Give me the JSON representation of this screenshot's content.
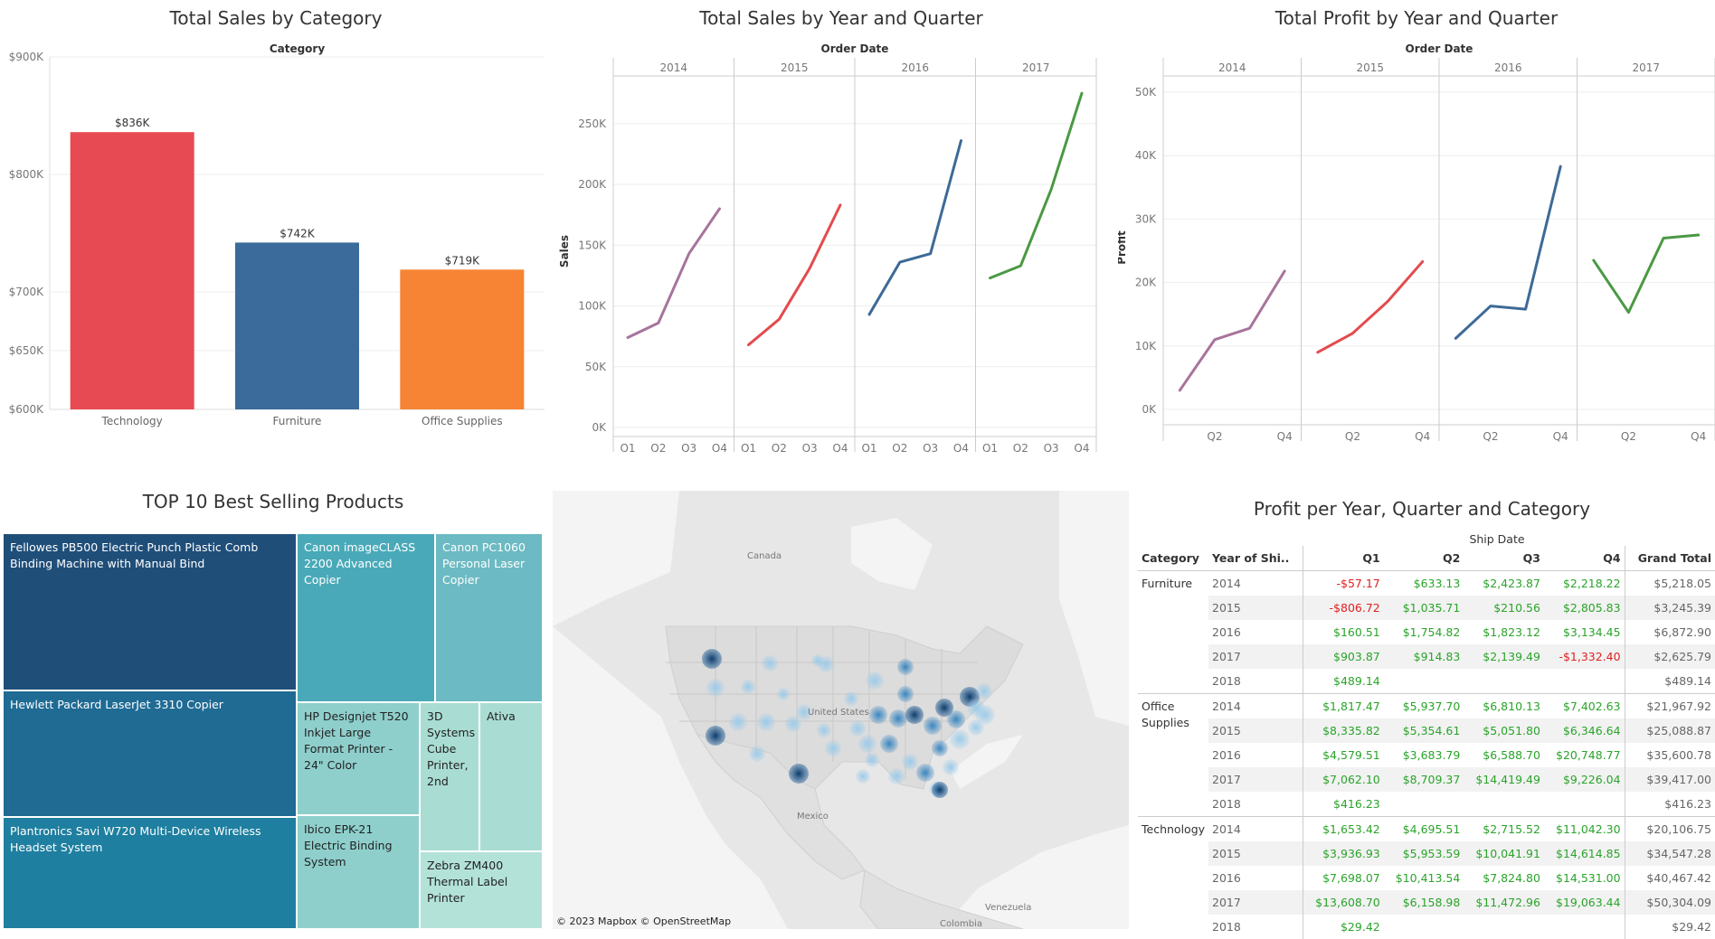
{
  "colors": {
    "technology": "#e84a53",
    "furniture": "#3a6b9b",
    "office": "#f78434",
    "y2014": "#a8739c",
    "y2015": "#e34b4e",
    "y2016": "#3d6a97",
    "y2017": "#4a9943",
    "pos": "#2aa42a",
    "neg": "#e02020",
    "treemap": [
      "#1f4e79",
      "#1f6b94",
      "#1e7fa0",
      "#4aa9b8",
      "#6cbac3",
      "#8ecfcc",
      "#a9ddd3"
    ]
  },
  "bar_panel": {
    "title": "Total Sales by Category",
    "header": "Category"
  },
  "sales_panel": {
    "title": "Total Sales by Year and Quarter",
    "header": "Order Date",
    "ylabel": "Sales"
  },
  "profit_panel": {
    "title": "Total Profit by Year and Quarter",
    "header": "Order Date",
    "ylabel": "Profit"
  },
  "treemap": {
    "title": "TOP 10 Best Selling Products",
    "items": [
      {
        "label": "Fellowes PB500 Electric Punch Plastic Comb Binding Machine with Manual Bind"
      },
      {
        "label": "Hewlett Packard LaserJet 3310 Copier"
      },
      {
        "label": "Plantronics Savi W720 Multi-Device Wireless Headset System"
      },
      {
        "label": "Canon imageCLASS 2200 Advanced Copier"
      },
      {
        "label": "Canon PC1060 Personal Laser Copier"
      },
      {
        "label": "HP Designjet T520 Inkjet Large Format Printer - 24\" Color"
      },
      {
        "label": "3D Systems Cube Printer, 2nd"
      },
      {
        "label": "Ativa"
      },
      {
        "label": "Ibico EPK-21 Electric Binding System"
      },
      {
        "label": "Zebra ZM400 Thermal Label Printer"
      }
    ]
  },
  "map": {
    "labels": {
      "canada": "Canada",
      "united_states": "United States",
      "mexico": "Mexico",
      "venezuela": "Venezuela",
      "colombia": "Colombia"
    },
    "credit": "© 2023 Mapbox  © OpenStreetMap"
  },
  "pivot": {
    "title": "Profit per Year, Quarter and Category",
    "header": "Ship Date",
    "columns": [
      "Category",
      "Year of Shi..",
      "Q1",
      "Q2",
      "Q3",
      "Q4",
      "Grand Total"
    ],
    "groups": [
      {
        "category": "Furniture",
        "rows": [
          [
            "2014",
            "-$57.17",
            "$633.13",
            "$2,423.87",
            "$2,218.22",
            "$5,218.05"
          ],
          [
            "2015",
            "-$806.72",
            "$1,035.71",
            "$210.56",
            "$2,805.83",
            "$3,245.39"
          ],
          [
            "2016",
            "$160.51",
            "$1,754.82",
            "$1,823.12",
            "$3,134.45",
            "$6,872.90"
          ],
          [
            "2017",
            "$903.87",
            "$914.83",
            "$2,139.49",
            "-$1,332.40",
            "$2,625.79"
          ],
          [
            "2018",
            "$489.14",
            "",
            "",
            "",
            "$489.14"
          ]
        ]
      },
      {
        "category": "Office Supplies",
        "rows": [
          [
            "2014",
            "$1,817.47",
            "$5,937.70",
            "$6,810.13",
            "$7,402.63",
            "$21,967.92"
          ],
          [
            "2015",
            "$8,335.82",
            "$5,354.61",
            "$5,051.80",
            "$6,346.64",
            "$25,088.87"
          ],
          [
            "2016",
            "$4,579.51",
            "$3,683.79",
            "$6,588.70",
            "$20,748.77",
            "$35,600.78"
          ],
          [
            "2017",
            "$7,062.10",
            "$8,709.37",
            "$14,419.49",
            "$9,226.04",
            "$39,417.00"
          ],
          [
            "2018",
            "$416.23",
            "",
            "",
            "",
            "$416.23"
          ]
        ]
      },
      {
        "category": "Technology",
        "rows": [
          [
            "2014",
            "$1,653.42",
            "$4,695.51",
            "$2,715.52",
            "$11,042.30",
            "$20,106.75"
          ],
          [
            "2015",
            "$3,936.93",
            "$5,953.59",
            "$10,041.91",
            "$14,614.85",
            "$34,547.28"
          ],
          [
            "2016",
            "$7,698.07",
            "$10,413.54",
            "$7,824.80",
            "$14,531.00",
            "$40,467.42"
          ],
          [
            "2017",
            "$13,608.70",
            "$6,158.98",
            "$11,472.96",
            "$19,063.44",
            "$50,304.09"
          ],
          [
            "2018",
            "$29.42",
            "",
            "",
            "",
            "$29.42"
          ]
        ]
      }
    ]
  },
  "chart_data": [
    {
      "type": "bar",
      "title": "Total Sales by Category",
      "xlabel": "Category",
      "ylabel": "",
      "categories": [
        "Technology",
        "Furniture",
        "Office Supplies"
      ],
      "values": [
        836000,
        742000,
        719000
      ],
      "data_labels": [
        "$836K",
        "$742K",
        "$719K"
      ],
      "yticks": [
        "$600K",
        "$650K",
        "$700K",
        "$800K",
        "$900K"
      ],
      "ytick_values": [
        600000,
        650000,
        700000,
        800000,
        900000
      ],
      "ylim": [
        600000,
        900000
      ],
      "grid": true
    },
    {
      "type": "line",
      "title": "Total Sales by Year and Quarter",
      "xlabel": "Order Date",
      "ylabel": "Sales",
      "panels": [
        "2014",
        "2015",
        "2016",
        "2017"
      ],
      "x": [
        "Q1",
        "Q2",
        "Q3",
        "Q4"
      ],
      "series": [
        {
          "values": [
            74000,
            86000,
            143000,
            180000
          ]
        },
        {
          "values": [
            68000,
            89000,
            131000,
            183000
          ]
        },
        {
          "values": [
            93000,
            136000,
            143000,
            236000
          ]
        },
        {
          "values": [
            123000,
            133000,
            196000,
            275000
          ]
        }
      ],
      "yticks": [
        "0K",
        "50K",
        "100K",
        "150K",
        "200K",
        "250K"
      ],
      "ytick_values": [
        0,
        50000,
        100000,
        150000,
        200000,
        250000
      ],
      "ylim": [
        0,
        290000
      ],
      "grid": true
    },
    {
      "type": "line",
      "title": "Total Profit by Year and Quarter",
      "xlabel": "Order Date",
      "ylabel": "Profit",
      "panels": [
        "2014",
        "2015",
        "2016",
        "2017"
      ],
      "x": [
        "Q1",
        "Q2",
        "Q3",
        "Q4"
      ],
      "xtick_labels": [
        "",
        "Q2",
        "",
        "Q4"
      ],
      "series": [
        {
          "values": [
            3000,
            11000,
            12800,
            21800
          ]
        },
        {
          "values": [
            9000,
            12000,
            17000,
            23300
          ]
        },
        {
          "values": [
            11200,
            16300,
            15800,
            38300
          ]
        },
        {
          "values": [
            23500,
            15300,
            27000,
            27500
          ]
        }
      ],
      "yticks": [
        "0K",
        "10K",
        "20K",
        "30K",
        "40K",
        "50K"
      ],
      "ytick_values": [
        0,
        10000,
        20000,
        30000,
        40000,
        50000
      ],
      "ylim": [
        -1000,
        52000
      ],
      "grid": true
    }
  ]
}
